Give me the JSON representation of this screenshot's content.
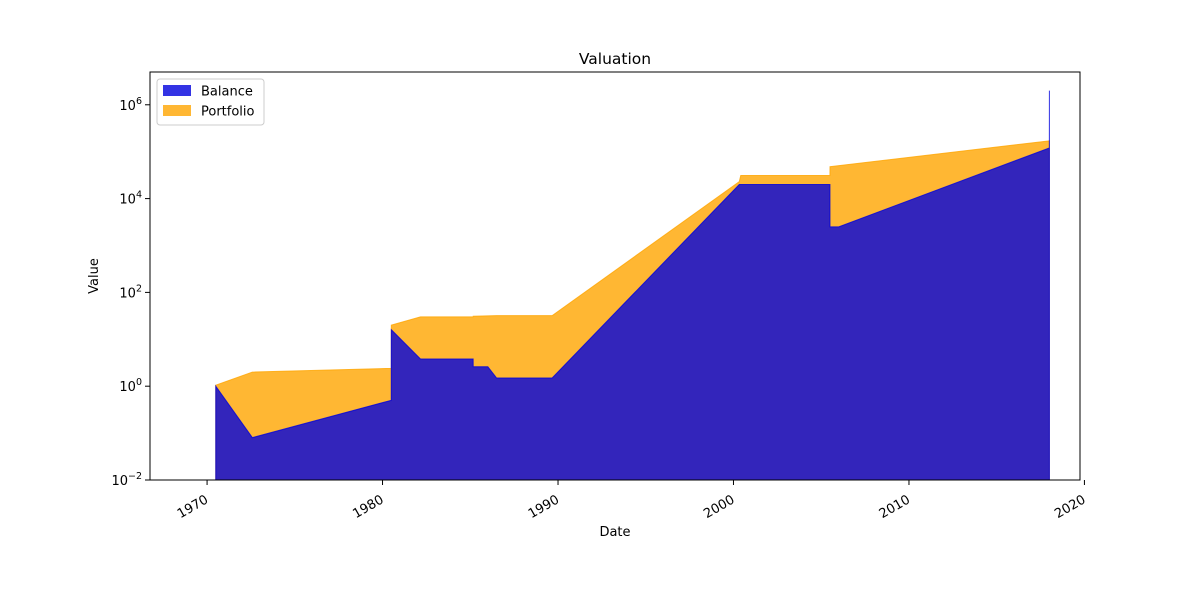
{
  "chart_data": {
    "type": "area",
    "title": "Valuation",
    "xlabel": "Date",
    "ylabel": "Value",
    "x_axis_type": "date",
    "y_scale": "log",
    "xlim": [
      "1966-10-01",
      "2019-10-01"
    ],
    "ylim": [
      0.01,
      5000000
    ],
    "x_ticks": [
      {
        "label": "1970",
        "date": "1970-01-01"
      },
      {
        "label": "1980",
        "date": "1980-01-01"
      },
      {
        "label": "1990",
        "date": "1990-01-01"
      },
      {
        "label": "2000",
        "date": "2000-01-01"
      },
      {
        "label": "2010",
        "date": "2010-01-01"
      },
      {
        "label": "2020",
        "date": "2020-01-01"
      }
    ],
    "y_ticks": [
      {
        "value": 0.01,
        "base": "10",
        "exp": "−2"
      },
      {
        "value": 1,
        "base": "10",
        "exp": "0"
      },
      {
        "value": 100,
        "base": "10",
        "exp": "2"
      },
      {
        "value": 10000,
        "base": "10",
        "exp": "4"
      },
      {
        "value": 1000000,
        "base": "10",
        "exp": "6"
      }
    ],
    "x_tick_rotation_deg": -30,
    "grid": false,
    "legend_position": "top-left",
    "series": [
      {
        "name": "Balance",
        "color": "#0000dd",
        "opacity": 0.8,
        "stacked": false,
        "points": [
          [
            "1970-07-01",
            1.0
          ],
          [
            "1972-08-01",
            0.08
          ],
          [
            "1980-07-01",
            0.5
          ],
          [
            "1980-07-02",
            16
          ],
          [
            "1982-03-01",
            3.8
          ],
          [
            "1985-03-01",
            3.8
          ],
          [
            "1985-03-02",
            2.6
          ],
          [
            "1986-01-01",
            2.6
          ],
          [
            "1986-07-01",
            1.5
          ],
          [
            "1989-09-01",
            1.5
          ],
          [
            "2000-05-01",
            20000
          ],
          [
            "2000-06-01",
            20000
          ],
          [
            "2005-07-01",
            20000
          ],
          [
            "2005-07-02",
            2500
          ],
          [
            "2006-01-01",
            2500
          ],
          [
            "2018-01-01",
            120000
          ],
          [
            "2018-01-02",
            2000000
          ]
        ]
      },
      {
        "name": "Portfolio",
        "color": "#ffa500",
        "opacity": 0.8,
        "stacked": true,
        "points": [
          [
            "1970-07-01",
            1.05
          ],
          [
            "1972-08-01",
            2.0
          ],
          [
            "1980-07-01",
            2.4
          ],
          [
            "1980-07-02",
            20
          ],
          [
            "1982-03-01",
            30
          ],
          [
            "1985-03-01",
            30
          ],
          [
            "1985-03-02",
            31
          ],
          [
            "1986-07-01",
            32
          ],
          [
            "1989-09-01",
            32
          ],
          [
            "2000-05-01",
            23000
          ],
          [
            "2000-06-01",
            31000
          ],
          [
            "2005-07-01",
            31000
          ],
          [
            "2005-07-02",
            48000
          ],
          [
            "2018-01-01",
            170000
          ],
          [
            "2018-01-02",
            170000
          ]
        ]
      }
    ]
  }
}
